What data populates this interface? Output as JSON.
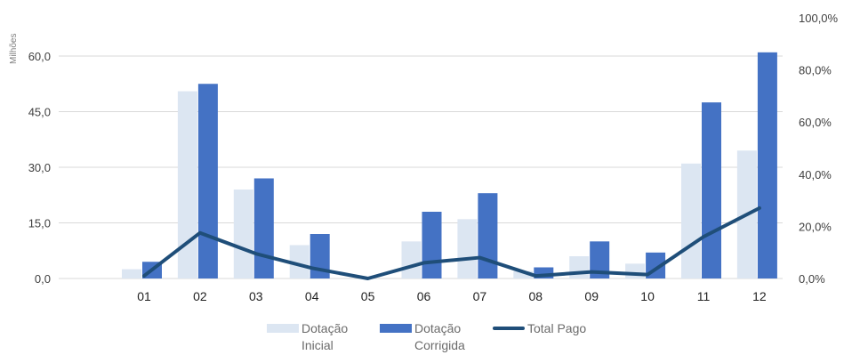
{
  "chart_data": {
    "type": "bar",
    "title": "",
    "unit_label": "Milhões",
    "categories": [
      "01",
      "02",
      "03",
      "04",
      "05",
      "06",
      "07",
      "08",
      "09",
      "10",
      "11",
      "12"
    ],
    "series": [
      {
        "name": "Dotação Inicial",
        "type": "bar",
        "axis": "left",
        "color": "#dce6f2",
        "values": [
          2.5,
          50.5,
          24.0,
          9.0,
          0.0,
          10.0,
          16.0,
          2.0,
          6.0,
          4.0,
          31.0,
          34.5
        ]
      },
      {
        "name": "Dotação Corrigida",
        "type": "bar",
        "axis": "left",
        "color": "#4472c4",
        "values": [
          4.5,
          52.5,
          27.0,
          12.0,
          0.0,
          18.0,
          23.0,
          3.0,
          10.0,
          7.0,
          47.5,
          61.0
        ]
      },
      {
        "name": "Total Pago",
        "type": "line",
        "axis": "right",
        "color": "#1f4e79",
        "values": [
          0.01,
          0.175,
          0.095,
          0.04,
          0.0,
          0.06,
          0.08,
          0.01,
          0.025,
          0.015,
          0.16,
          0.27
        ]
      }
    ],
    "y_left": {
      "min": 0,
      "max": 60,
      "ticks": [
        "0,0",
        "15,0",
        "30,0",
        "45,0",
        "60,0"
      ]
    },
    "y_right": {
      "min": 0,
      "max": 1.0,
      "ticks": [
        "0,0%",
        "20,0%",
        "40,0%",
        "60,0%",
        "80,0%",
        "100,0%"
      ]
    },
    "grid": true,
    "legend_position": "bottom"
  },
  "legend": {
    "items": [
      {
        "label": "Dotação Inicial",
        "color": "#dce6f2"
      },
      {
        "label": "Dotação Corrigida",
        "color": "#4472c4"
      },
      {
        "label": "Total Pago",
        "color": "#1f4e79"
      }
    ]
  }
}
